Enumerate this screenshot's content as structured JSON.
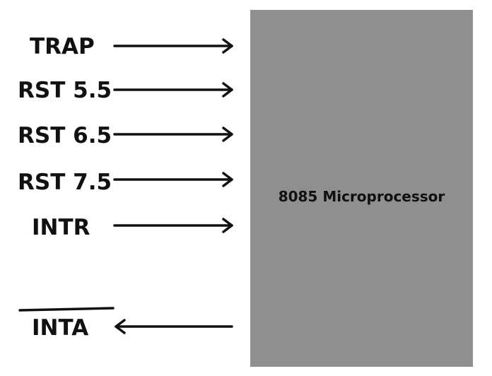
{
  "processor": "8085 Microprocessor",
  "inputs": [
    "TRAP",
    "RST 5.5",
    "RST 6.5",
    "RST 7.5",
    "INTR"
  ],
  "output": "INTA"
}
